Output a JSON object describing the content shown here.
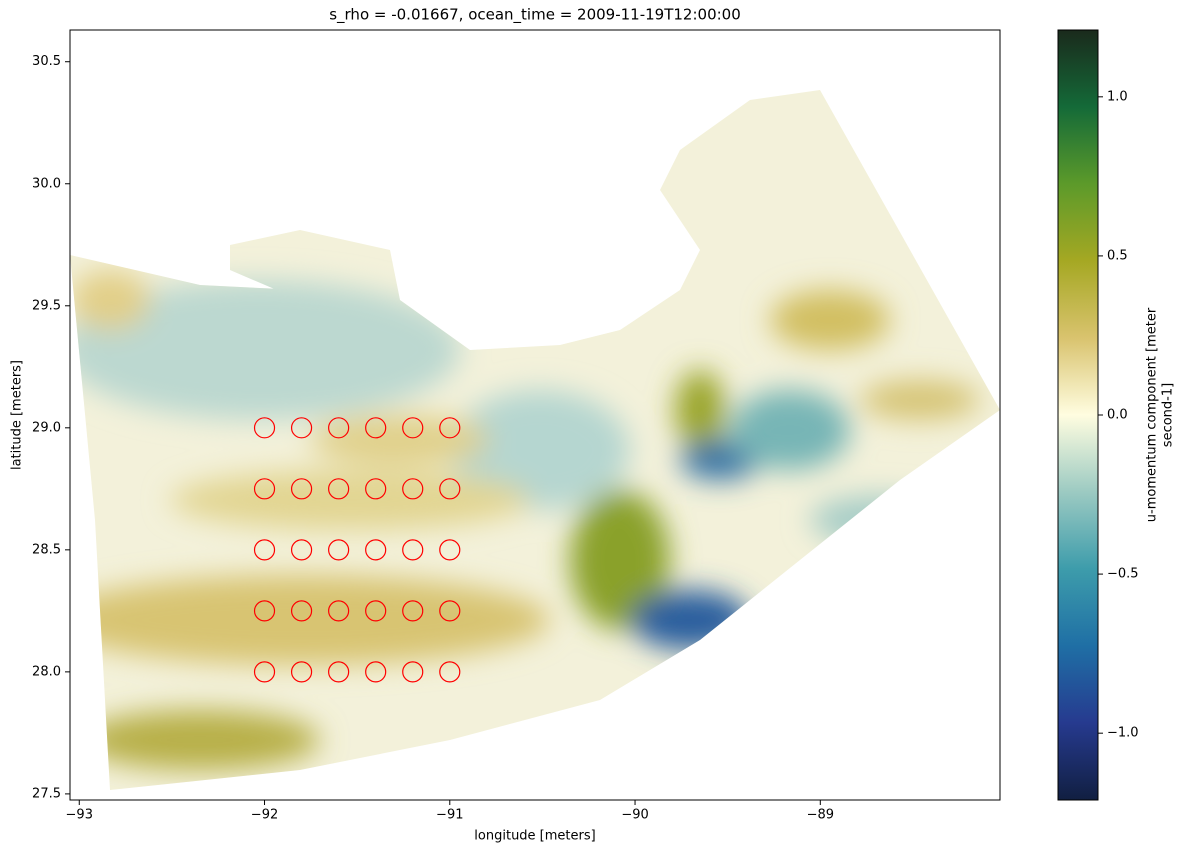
{
  "chart_data": {
    "type": "scatter",
    "title": "s_rho = -0.01667, ocean_time = 2009-11-19T12:00:00",
    "xlabel": "longitude [meters]",
    "ylabel": "latitude [meters]",
    "xlim": [
      -93.05,
      -88.03
    ],
    "ylim": [
      27.475,
      30.63
    ],
    "xticks": [
      {
        "value": -93,
        "label": "−93"
      },
      {
        "value": -92,
        "label": "−92"
      },
      {
        "value": -91,
        "label": "−91"
      },
      {
        "value": -90,
        "label": "−90"
      },
      {
        "value": -89,
        "label": "−89"
      }
    ],
    "yticks": [
      27.5,
      {
        "value": 28,
        "label": "28.0"
      },
      28.5,
      {
        "value": 29,
        "label": "29.0"
      },
      29.5,
      {
        "value": 30,
        "label": "30.0"
      },
      30.5
    ],
    "x": [
      -92,
      -91.8,
      -91.6,
      -91.4,
      -91.2,
      -91,
      -92,
      -91.8,
      -91.6,
      -91.4,
      -91.2,
      -91,
      -92,
      -91.8,
      -91.6,
      -91.4,
      -91.2,
      -91,
      -92,
      -91.8,
      -91.6,
      -91.4,
      -91.2,
      -91,
      -92,
      -91.8,
      -91.6,
      -91.4,
      -91.2,
      -91
    ],
    "y": [
      28,
      28,
      28,
      28,
      28,
      28,
      28.25,
      28.25,
      28.25,
      28.25,
      28.25,
      28.25,
      28.5,
      28.5,
      28.5,
      28.5,
      28.5,
      28.5,
      28.75,
      28.75,
      28.75,
      28.75,
      28.75,
      28.75,
      29,
      29,
      29,
      29,
      29,
      29
    ],
    "marker_edgecolor": "#ff0000",
    "colorbar": {
      "label": [
        "u-momentum component [meter",
        "second-1]"
      ],
      "clim": [
        -1.21,
        1.21
      ],
      "ticks": [
        {
          "value": -1,
          "label": "−1.0"
        },
        {
          "value": -0.5,
          "label": "−0.5"
        },
        {
          "value": 0,
          "label": "0.0"
        },
        0.5,
        {
          "value": 1,
          "label": "1.0"
        }
      ],
      "colormap": [
        "#111f41",
        "#263a8f",
        "#1f6fa5",
        "#3d9cab",
        "#9ccac2",
        "#fffde0",
        "#d9c36e",
        "#a5a823",
        "#5c9a2a",
        "#146a38",
        "#1a2a1c"
      ]
    }
  }
}
